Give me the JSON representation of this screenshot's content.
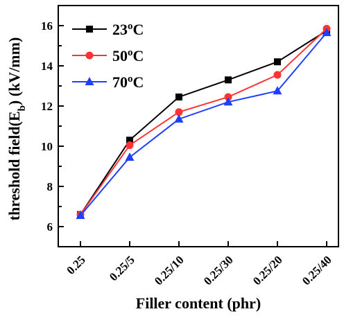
{
  "chart_data": {
    "type": "line",
    "title": "",
    "xlabel": "Filler content (phr)",
    "ylabel": {
      "prefix": "threshold field(E",
      "subscript": "b",
      "suffix": ") (kV/mm)"
    },
    "categories": [
      "0.25",
      "0.25/5",
      "0.25/10",
      "0.25/30",
      "0.25/20",
      "0.25/40"
    ],
    "ylim": [
      5,
      17
    ],
    "yticks": [
      "6",
      "8",
      "10",
      "12",
      "14",
      "16"
    ],
    "grid": false,
    "legend_position": "top-left",
    "series": [
      {
        "name": "23°C",
        "label_main": "23",
        "label_sup": "o",
        "label_unit": "C",
        "marker": "square",
        "color": "#000000",
        "values": [
          6.6,
          10.3,
          12.45,
          13.3,
          14.2,
          15.75
        ]
      },
      {
        "name": "50°C",
        "label_main": "50",
        "label_sup": "o",
        "label_unit": "C",
        "marker": "circle",
        "color": "#ff3333",
        "values": [
          6.6,
          10.05,
          11.7,
          12.45,
          13.55,
          15.85
        ]
      },
      {
        "name": "70°C",
        "label_main": "70",
        "label_sup": "o",
        "label_unit": "C",
        "marker": "triangle",
        "color": "#1f3fff",
        "values": [
          6.55,
          9.45,
          11.35,
          12.2,
          12.75,
          15.65
        ]
      }
    ]
  }
}
